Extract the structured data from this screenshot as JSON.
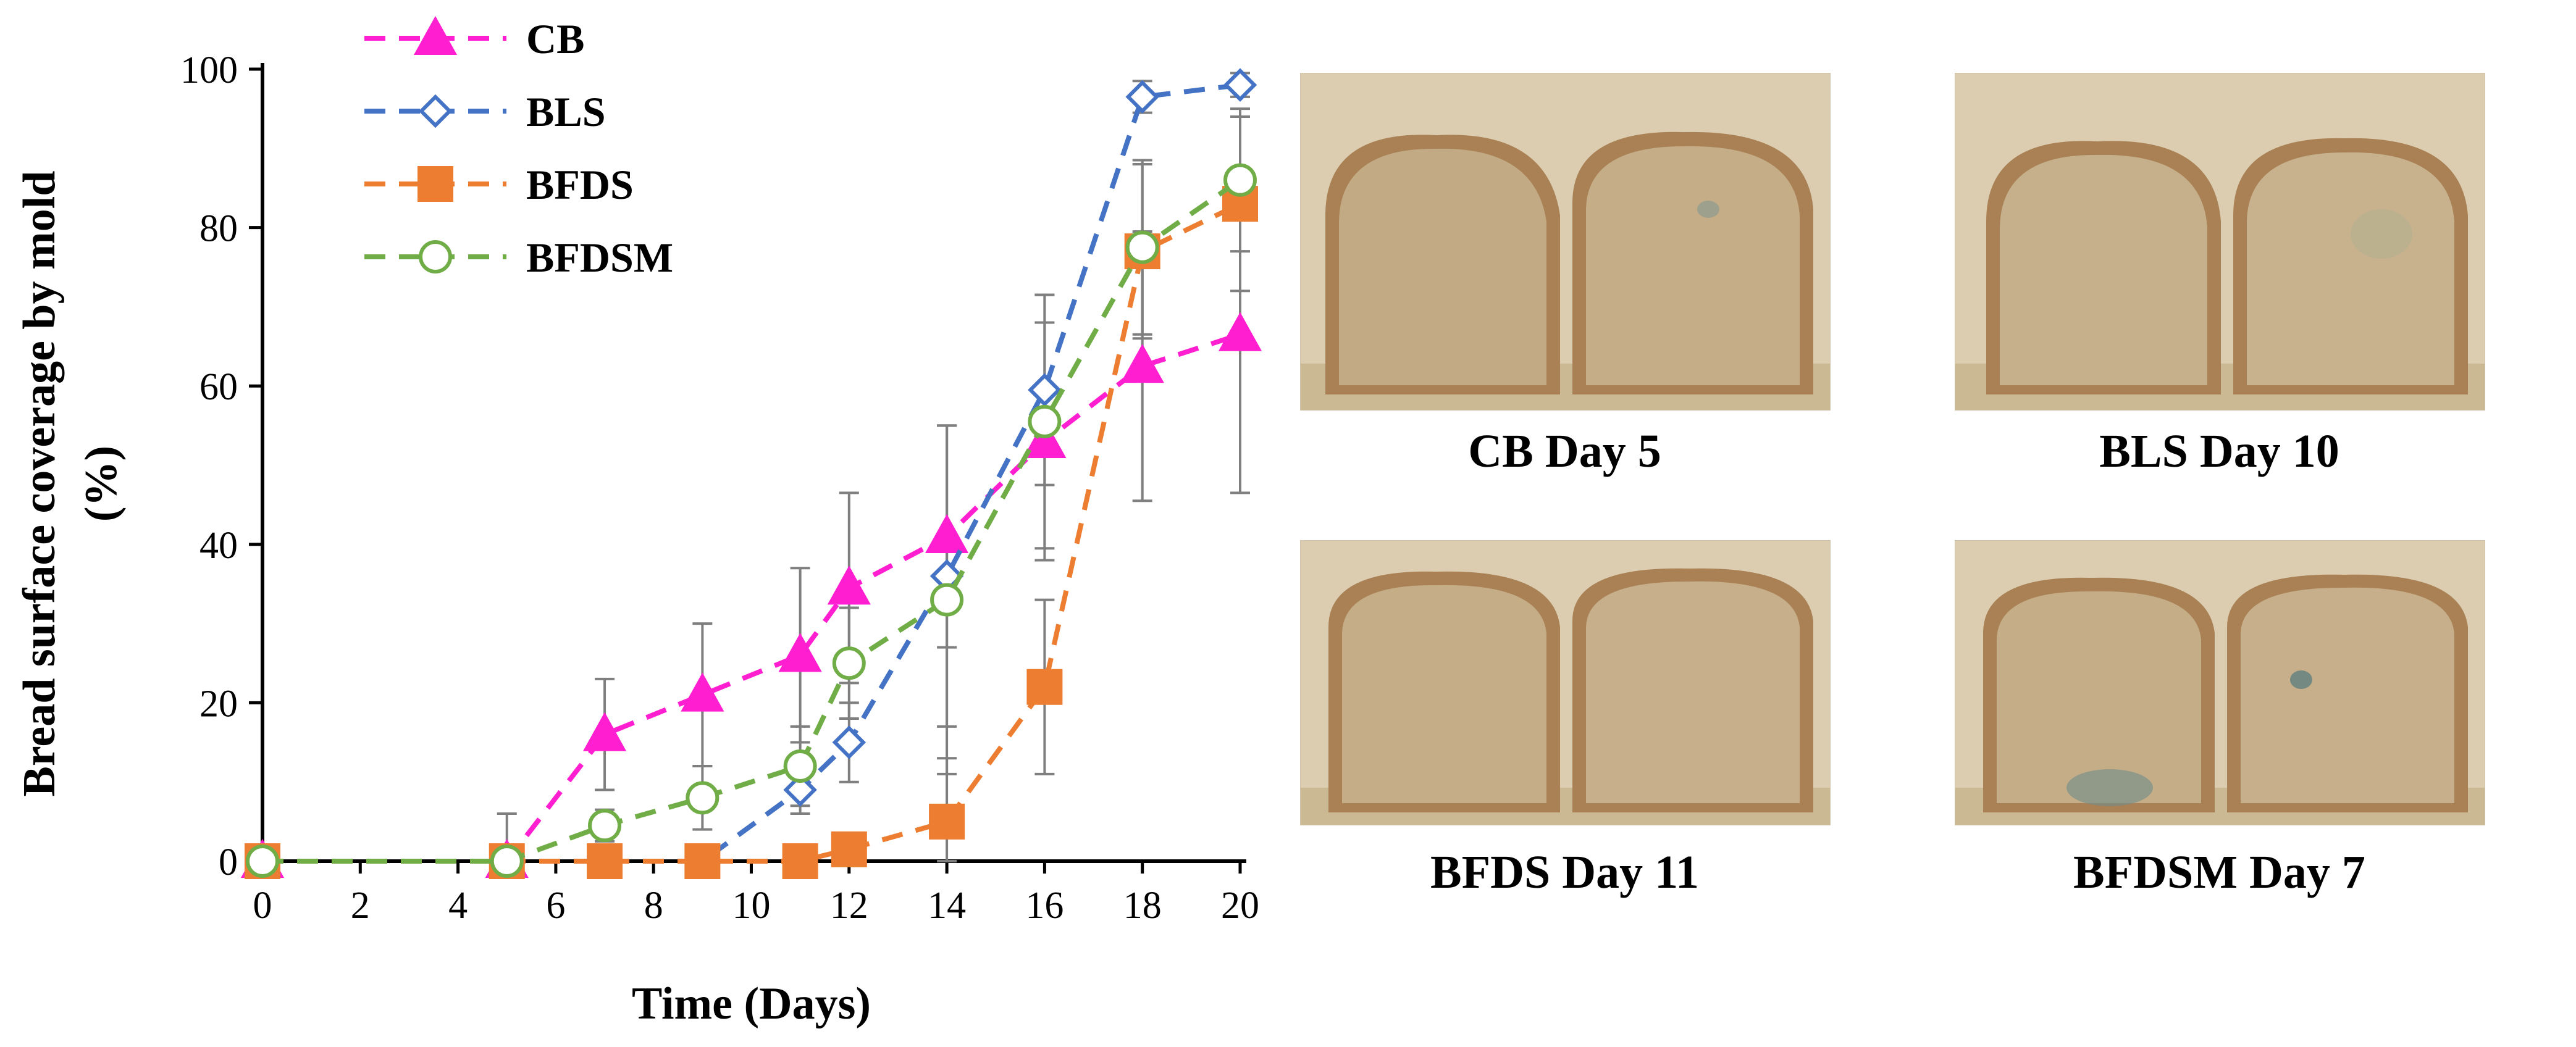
{
  "chart_data": {
    "type": "line",
    "xlabel": "Time (Days)",
    "ylabel": "Bread surface coverage by mold (%)",
    "ylabel_lines": [
      "Bread surface coverage by mold",
      "(%)"
    ],
    "xlim": [
      0,
      20
    ],
    "ylim": [
      0,
      100
    ],
    "xticks": [
      0,
      2,
      4,
      6,
      8,
      10,
      12,
      14,
      16,
      18,
      20
    ],
    "yticks": [
      0,
      20,
      40,
      60,
      80,
      100
    ],
    "legend_position": "top-left",
    "series": [
      {
        "name": "CB",
        "marker": "triangle",
        "color": "#ff1fd1",
        "filled": true,
        "x": [
          0,
          5,
          7,
          9,
          11,
          12,
          14,
          16,
          18,
          20
        ],
        "y": [
          0,
          0,
          16,
          21,
          26,
          34.5,
          41,
          53,
          62.5,
          66.5
        ],
        "err": [
          0,
          6,
          7,
          9,
          11,
          12,
          14,
          15,
          17,
          20
        ]
      },
      {
        "name": "BLS",
        "marker": "diamond",
        "color": "#4472c4",
        "filled": false,
        "x": [
          0,
          5,
          7,
          9,
          11,
          12,
          14,
          16,
          18,
          20
        ],
        "y": [
          0,
          0,
          0,
          0,
          9,
          15,
          36,
          59.5,
          96.5,
          98
        ],
        "err": [
          0,
          0,
          0,
          0,
          3,
          5,
          19,
          12,
          2,
          1.5
        ]
      },
      {
        "name": "BFDS",
        "marker": "square",
        "color": "#ed7d31",
        "filled": true,
        "x": [
          0,
          5,
          7,
          9,
          11,
          12,
          14,
          16,
          18,
          20
        ],
        "y": [
          0,
          0,
          0,
          0,
          0,
          1.5,
          5,
          22,
          77,
          83
        ],
        "err": [
          0,
          0,
          0,
          0,
          0,
          0,
          8,
          11,
          11,
          11
        ]
      },
      {
        "name": "BFDSM",
        "marker": "circle",
        "color": "#70ad47",
        "filled": false,
        "x": [
          0,
          5,
          7,
          9,
          11,
          12,
          14,
          16,
          18,
          20
        ],
        "y": [
          0,
          0,
          4.5,
          8,
          12,
          25,
          33,
          55.5,
          77.5,
          86
        ],
        "err": [
          0,
          0,
          2,
          4,
          5,
          7,
          22,
          16,
          11,
          9
        ]
      }
    ]
  },
  "photos": [
    {
      "caption": "CB Day 5"
    },
    {
      "caption": "BLS Day 10"
    },
    {
      "caption": "BFDS Day 11"
    },
    {
      "caption": "BFDSM Day 7"
    }
  ]
}
